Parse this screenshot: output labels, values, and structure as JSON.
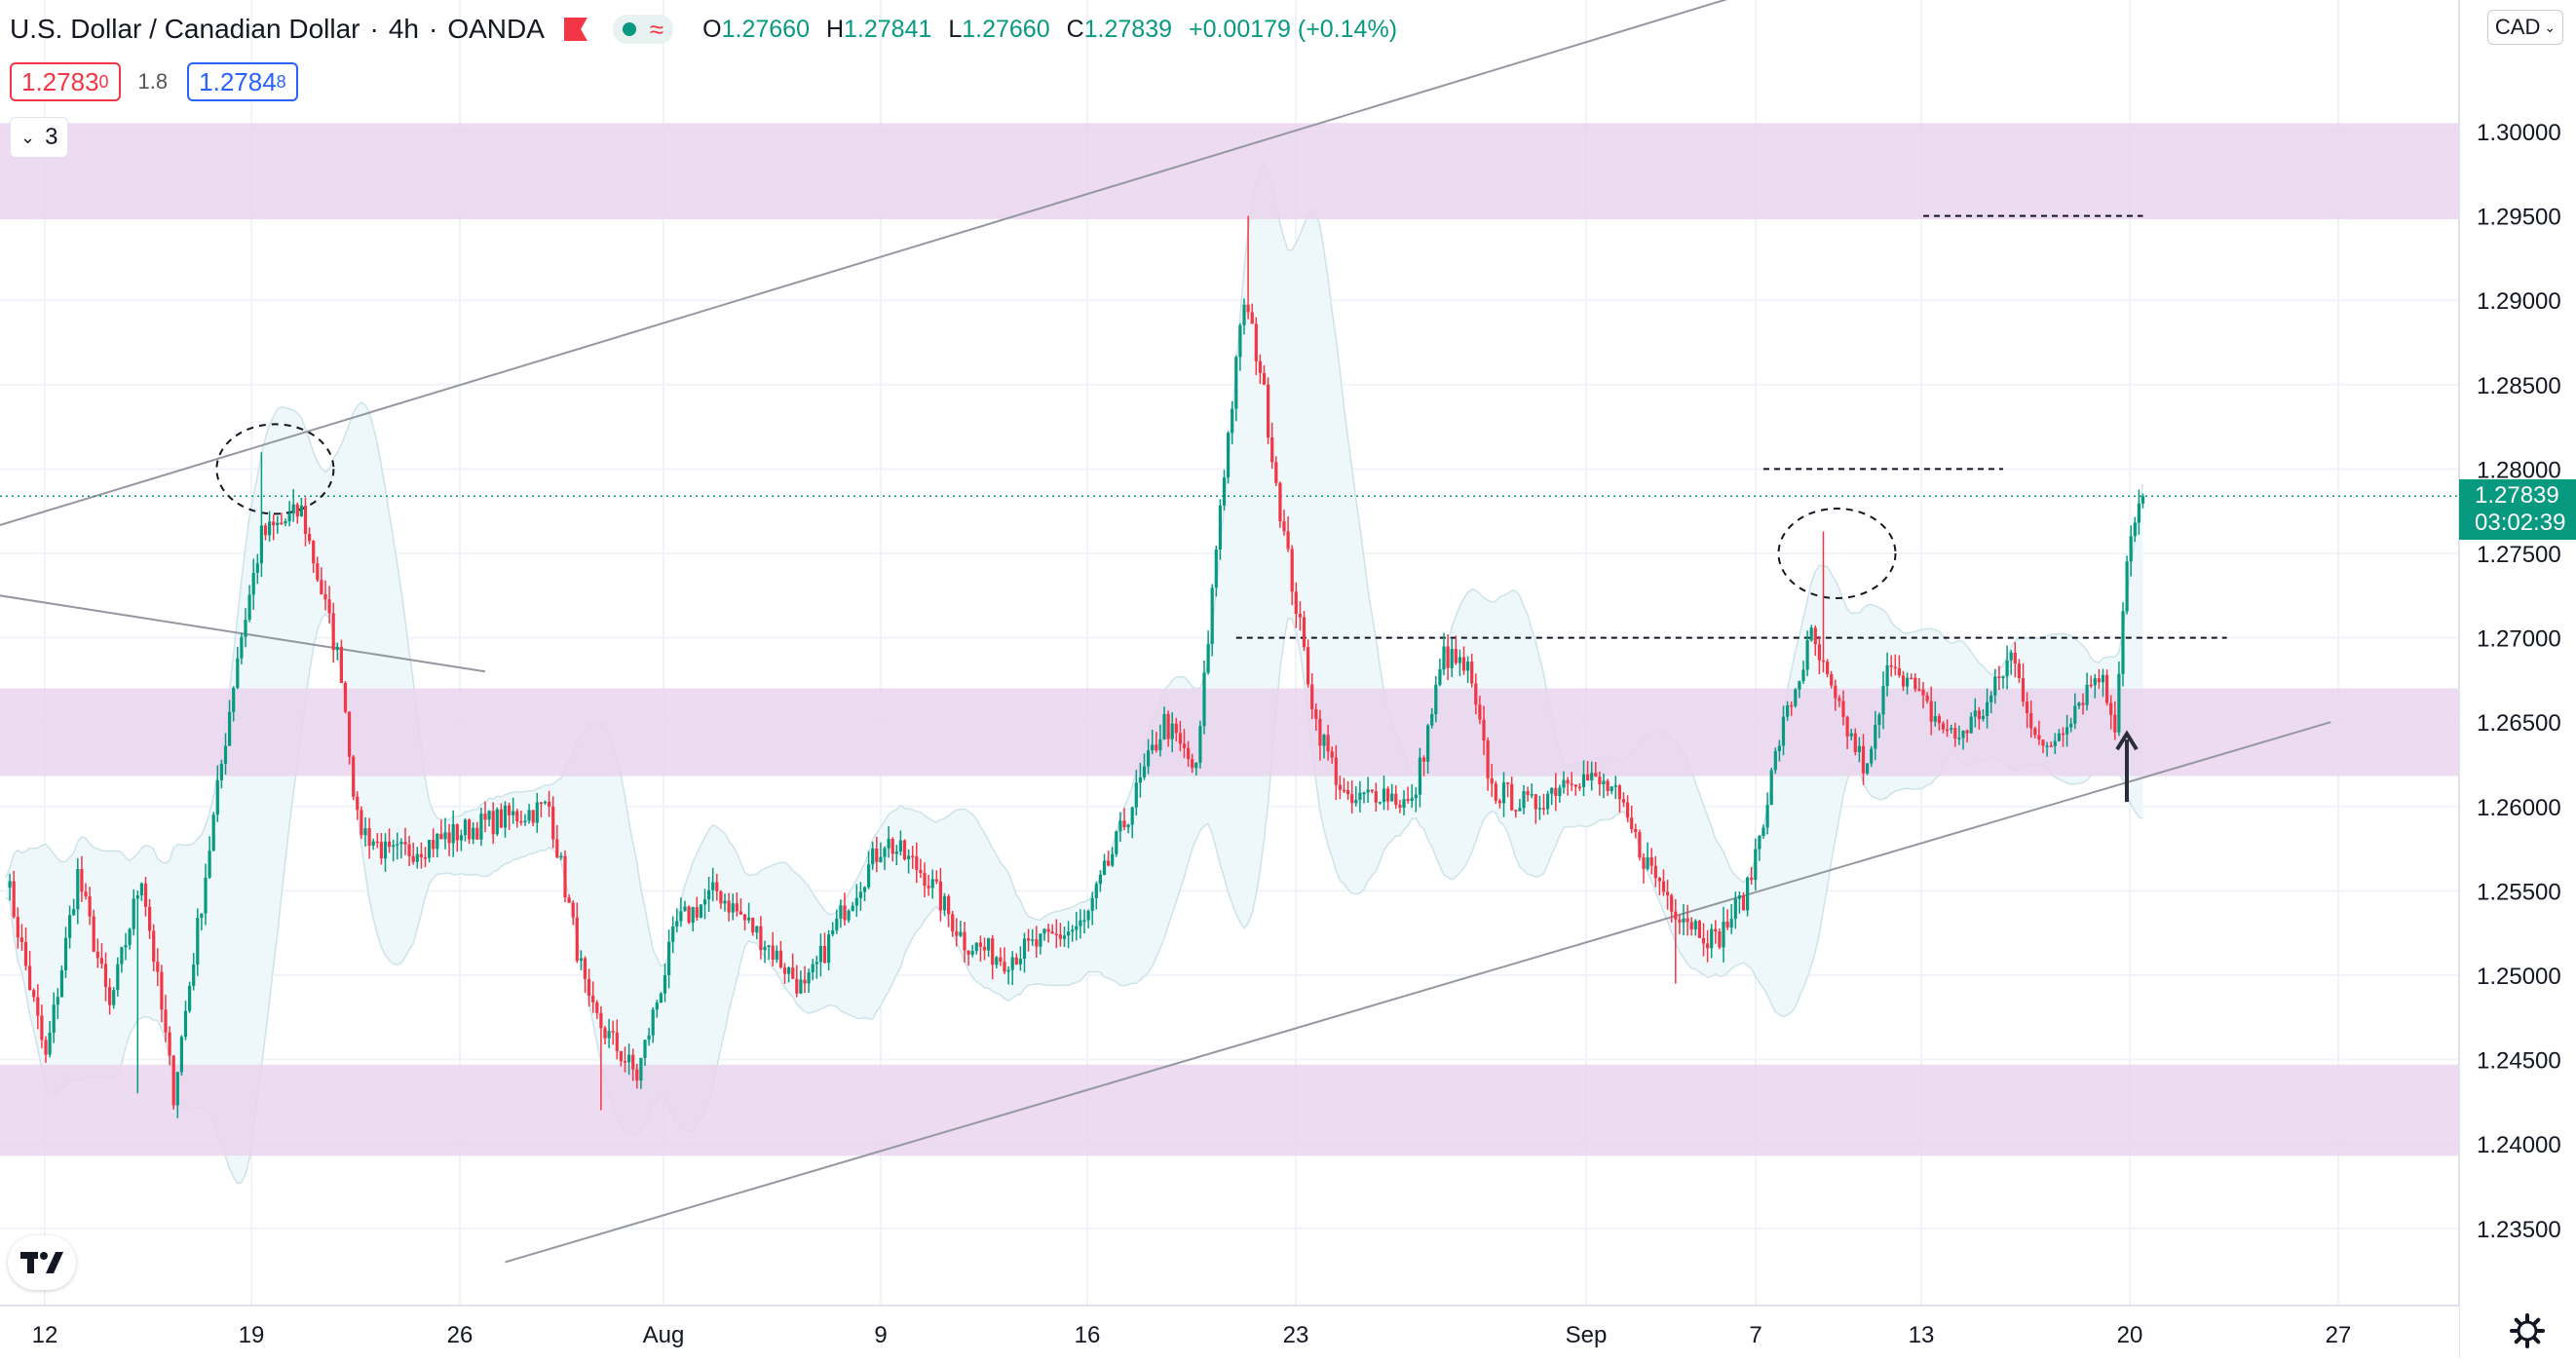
{
  "header": {
    "symbol": "U.S. Dollar / Canadian Dollar",
    "interval": "4h",
    "source": "OANDA",
    "ohlc": {
      "o_label": "O",
      "o": "1.27660",
      "h_label": "H",
      "h": "1.27841",
      "l_label": "L",
      "l": "1.27660",
      "c_label": "C",
      "c": "1.27839",
      "change": "+0.00179 (+0.14%)"
    }
  },
  "quote": {
    "sell_main": "1.2783",
    "sell_sup": "0",
    "spread": "1.8",
    "buy_main": "1.2784",
    "buy_sup": "8"
  },
  "indicators": {
    "count": "3"
  },
  "price_axis": {
    "currency": "CAD",
    "current_price": "1.27839",
    "countdown": "03:02:39"
  },
  "colors": {
    "up": "#089981",
    "down": "#f23645",
    "zone": "#e9d5ee",
    "band": "#eef7f9",
    "accent": "#089981"
  },
  "chart_data": {
    "type": "candlestick",
    "title": "U.S. Dollar / Canadian Dollar · 4h · OANDA",
    "xlabel": "",
    "ylabel": "",
    "x_ticks": [
      "12",
      "19",
      "26",
      "Aug",
      "9",
      "16",
      "23",
      "Sep",
      "7",
      "13",
      "20",
      "27"
    ],
    "y_ticks": [
      "1.30000",
      "1.29500",
      "1.29000",
      "1.28500",
      "1.28000",
      "1.27500",
      "1.27000",
      "1.26500",
      "1.26000",
      "1.25500",
      "1.25000",
      "1.24500",
      "1.24000",
      "1.23500"
    ],
    "ylim": [
      1.232,
      1.305
    ],
    "grid": true,
    "series_anchors": [
      {
        "t": 0,
        "p": 1.256
      },
      {
        "t": 10,
        "p": 1.245
      },
      {
        "t": 18,
        "p": 1.256
      },
      {
        "t": 26,
        "p": 1.248
      },
      {
        "t": 34,
        "p": 1.256
      },
      {
        "t": 42,
        "p": 1.243
      },
      {
        "t": 50,
        "p": 1.256
      },
      {
        "t": 58,
        "p": 1.269
      },
      {
        "t": 64,
        "p": 1.276
      },
      {
        "t": 74,
        "p": 1.2775
      },
      {
        "t": 84,
        "p": 1.268
      },
      {
        "t": 88,
        "p": 1.259
      },
      {
        "t": 96,
        "p": 1.257
      },
      {
        "t": 108,
        "p": 1.258
      },
      {
        "t": 120,
        "p": 1.259
      },
      {
        "t": 136,
        "p": 1.26
      },
      {
        "t": 146,
        "p": 1.248
      },
      {
        "t": 158,
        "p": 1.244
      },
      {
        "t": 168,
        "p": 1.253
      },
      {
        "t": 178,
        "p": 1.255
      },
      {
        "t": 190,
        "p": 1.252
      },
      {
        "t": 200,
        "p": 1.249
      },
      {
        "t": 210,
        "p": 1.254
      },
      {
        "t": 220,
        "p": 1.258
      },
      {
        "t": 230,
        "p": 1.256
      },
      {
        "t": 240,
        "p": 1.252
      },
      {
        "t": 250,
        "p": 1.251
      },
      {
        "t": 260,
        "p": 1.252
      },
      {
        "t": 270,
        "p": 1.253
      },
      {
        "t": 280,
        "p": 1.259
      },
      {
        "t": 290,
        "p": 1.265
      },
      {
        "t": 298,
        "p": 1.262
      },
      {
        "t": 304,
        "p": 1.278
      },
      {
        "t": 310,
        "p": 1.29
      },
      {
        "t": 314,
        "p": 1.286
      },
      {
        "t": 320,
        "p": 1.276
      },
      {
        "t": 328,
        "p": 1.265
      },
      {
        "t": 336,
        "p": 1.26
      },
      {
        "t": 344,
        "p": 1.261
      },
      {
        "t": 352,
        "p": 1.26
      },
      {
        "t": 360,
        "p": 1.269
      },
      {
        "t": 366,
        "p": 1.268
      },
      {
        "t": 372,
        "p": 1.261
      },
      {
        "t": 382,
        "p": 1.26
      },
      {
        "t": 392,
        "p": 1.262
      },
      {
        "t": 402,
        "p": 1.261
      },
      {
        "t": 410,
        "p": 1.257
      },
      {
        "t": 418,
        "p": 1.254
      },
      {
        "t": 428,
        "p": 1.252
      },
      {
        "t": 436,
        "p": 1.255
      },
      {
        "t": 444,
        "p": 1.264
      },
      {
        "t": 452,
        "p": 1.27
      },
      {
        "t": 458,
        "p": 1.266
      },
      {
        "t": 466,
        "p": 1.262
      },
      {
        "t": 472,
        "p": 1.269
      },
      {
        "t": 480,
        "p": 1.266
      },
      {
        "t": 488,
        "p": 1.264
      },
      {
        "t": 496,
        "p": 1.266
      },
      {
        "t": 502,
        "p": 1.269
      },
      {
        "t": 510,
        "p": 1.263
      },
      {
        "t": 518,
        "p": 1.266
      },
      {
        "t": 524,
        "p": 1.268
      },
      {
        "t": 528,
        "p": 1.265
      },
      {
        "t": 531,
        "p": 1.275
      },
      {
        "t": 535,
        "p": 1.2784
      }
    ],
    "candles": {
      "count": 535,
      "wick_highs": [
        {
          "t": 64,
          "p": 1.281
        },
        {
          "t": 311,
          "p": 1.295
        },
        {
          "t": 455,
          "p": 1.2763
        }
      ],
      "wick_lows": [
        {
          "t": 33,
          "p": 1.243
        },
        {
          "t": 149,
          "p": 1.242
        },
        {
          "t": 418,
          "p": 1.2495
        }
      ]
    },
    "zones": [
      {
        "from": 1.2948,
        "to": 1.3005
      },
      {
        "from": 1.2618,
        "to": 1.267
      },
      {
        "from": 1.2393,
        "to": 1.2447
      }
    ],
    "horizontal_levels": [
      {
        "price": 1.295,
        "t_from": 480,
        "t_to": 535,
        "style": "dashed"
      },
      {
        "price": 1.28,
        "t_from": 440,
        "t_to": 500,
        "style": "dashed"
      },
      {
        "price": 1.27,
        "t_from": 308,
        "t_to": 556,
        "style": "dashed"
      },
      {
        "price": 1.27839,
        "style": "dotted"
      }
    ],
    "trendlines": [
      {
        "from": {
          "t": -15,
          "p": 1.2757
        },
        "to": {
          "t": 440,
          "p": 1.3085
        }
      },
      {
        "from": {
          "t": -15,
          "p": 1.273
        },
        "to": {
          "t": 120,
          "p": 1.268
        }
      },
      {
        "from": {
          "t": 125,
          "p": 1.233
        },
        "to": {
          "t": 582,
          "p": 1.265
        }
      }
    ],
    "markers": [
      {
        "type": "ellipse",
        "t": 64,
        "p": 1.28
      },
      {
        "type": "ellipse",
        "t": 455,
        "p": 1.275
      },
      {
        "type": "arrow_up",
        "t": 530,
        "p": 1.2635
      }
    ],
    "bands": "bollinger"
  }
}
